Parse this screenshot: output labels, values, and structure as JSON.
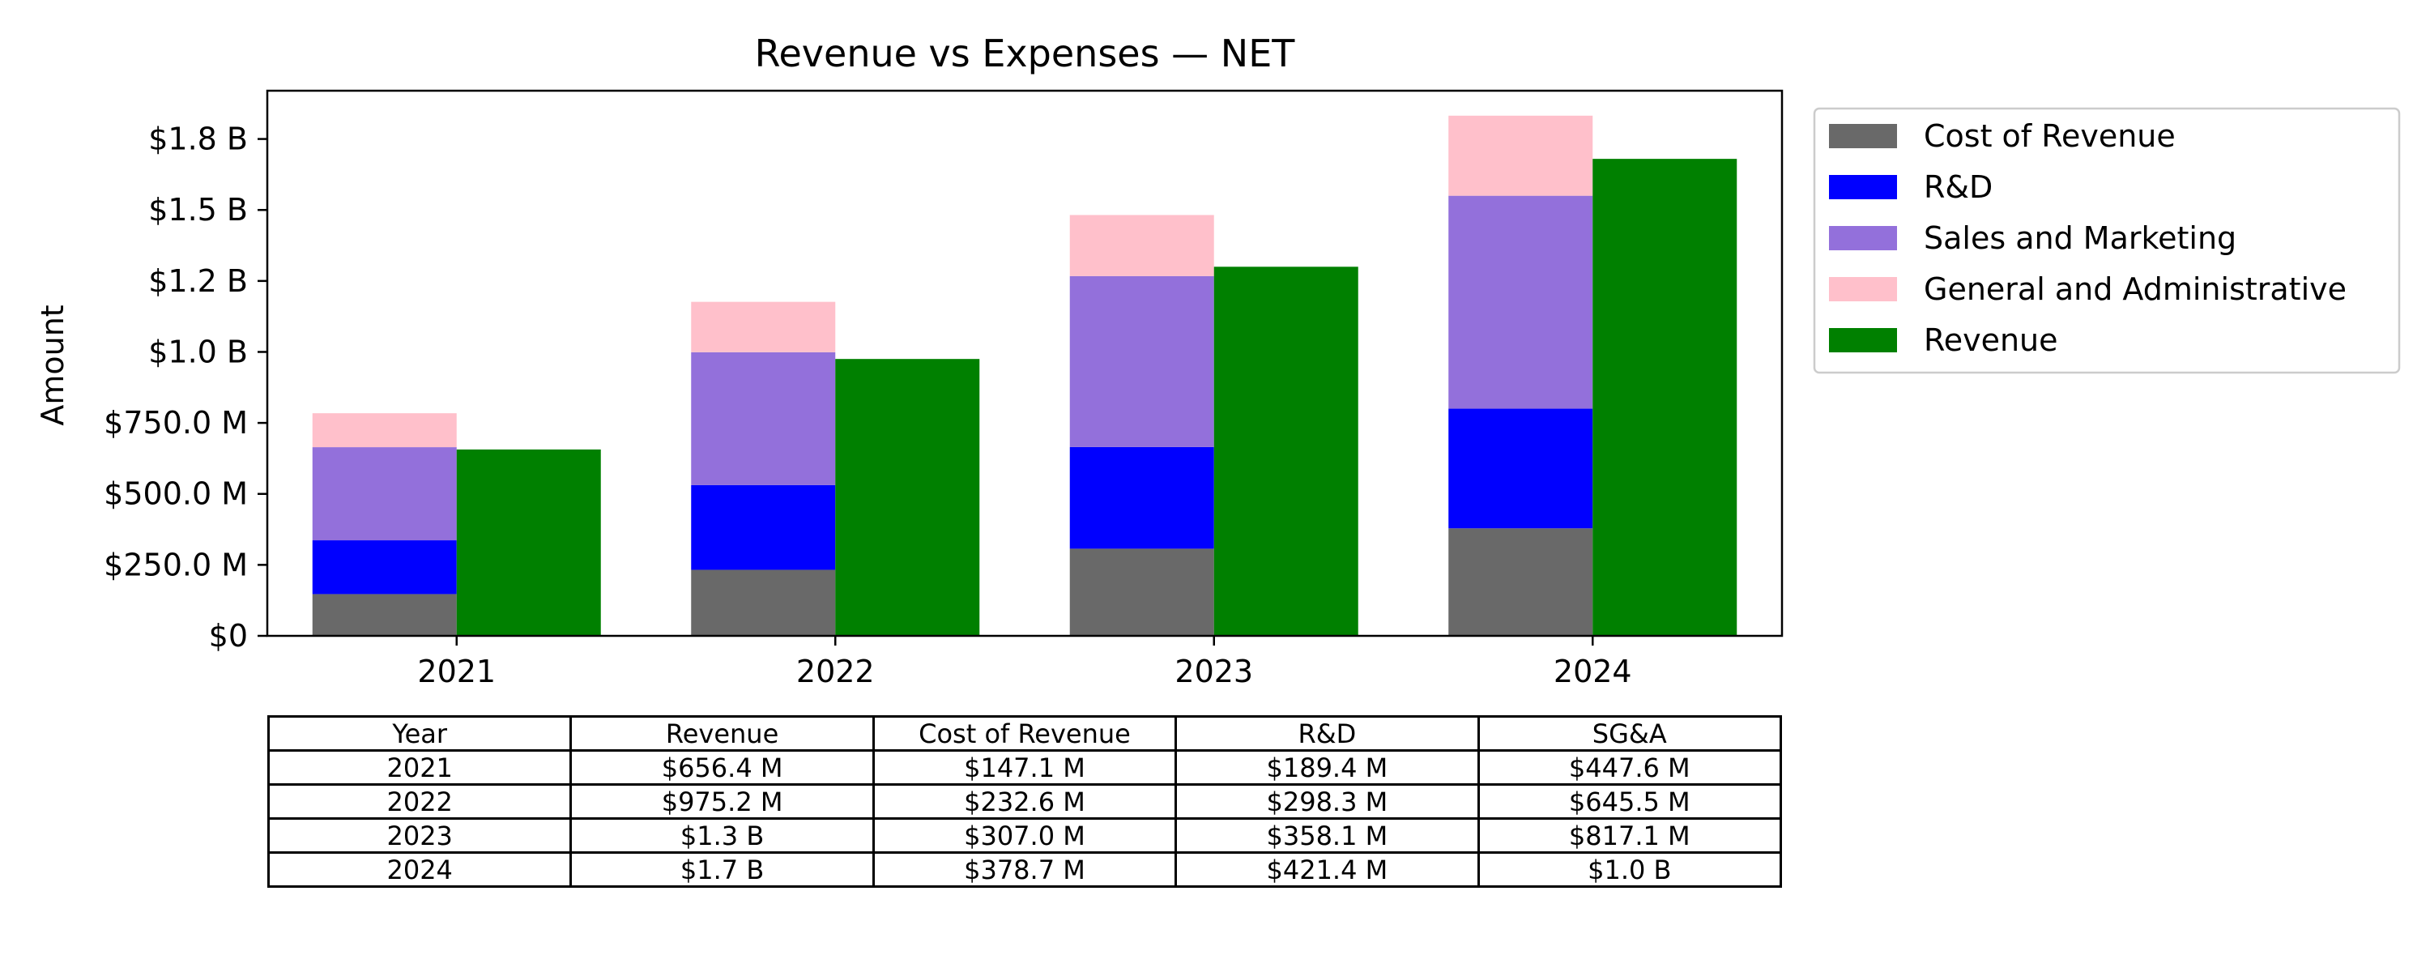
{
  "chart_data": {
    "type": "bar",
    "title": "Revenue vs Expenses — NET",
    "xlabel": "",
    "ylabel": "Amount",
    "categories": [
      "2021",
      "2022",
      "2023",
      "2024"
    ],
    "ylim": [
      0,
      1920
    ],
    "y_unit": "$M",
    "yticks": [
      {
        "value": 0,
        "label": "$0"
      },
      {
        "value": 250,
        "label": "$250.0 M"
      },
      {
        "value": 500,
        "label": "$500.0 M"
      },
      {
        "value": 750,
        "label": "$750.0 M"
      },
      {
        "value": 1000,
        "label": "$1.0 B"
      },
      {
        "value": 1250,
        "label": "$1.2 B"
      },
      {
        "value": 1500,
        "label": "$1.5 B"
      },
      {
        "value": 1750,
        "label": "$1.8 B"
      }
    ],
    "stacked_series": [
      {
        "name": "Cost of Revenue",
        "color": "#696969",
        "values": [
          147.1,
          232.6,
          307.0,
          378.7
        ]
      },
      {
        "name": "R&D",
        "color": "#0000ff",
        "values": [
          189.4,
          298.3,
          358.1,
          421.4
        ]
      },
      {
        "name": "Sales and Marketing",
        "color": "#9370db",
        "values": [
          328.0,
          468.0,
          602.0,
          750.0
        ]
      },
      {
        "name": "General and Administrative",
        "color": "#ffc0cb",
        "values": [
          119.6,
          177.5,
          215.1,
          282.0
        ]
      }
    ],
    "series": [
      {
        "name": "Revenue",
        "color": "#008000",
        "values": [
          656.4,
          975.2,
          1300,
          1680
        ]
      }
    ],
    "legend": {
      "position": "outside-right",
      "items": [
        "Cost of Revenue",
        "R&D",
        "Sales and Marketing",
        "General and Administrative",
        "Revenue"
      ]
    },
    "grid": false
  },
  "table": {
    "columns": [
      "Year",
      "Revenue",
      "Cost of Revenue",
      "R&D",
      "SG&A"
    ],
    "rows": [
      [
        "2021",
        "$656.4 M",
        "$147.1 M",
        "$189.4 M",
        "$447.6 M"
      ],
      [
        "2022",
        "$975.2 M",
        "$232.6 M",
        "$298.3 M",
        "$645.5 M"
      ],
      [
        "2023",
        "$1.3 B",
        "$307.0 M",
        "$358.1 M",
        "$817.1 M"
      ],
      [
        "2024",
        "$1.7 B",
        "$378.7 M",
        "$421.4 M",
        "$1.0 B"
      ]
    ]
  }
}
